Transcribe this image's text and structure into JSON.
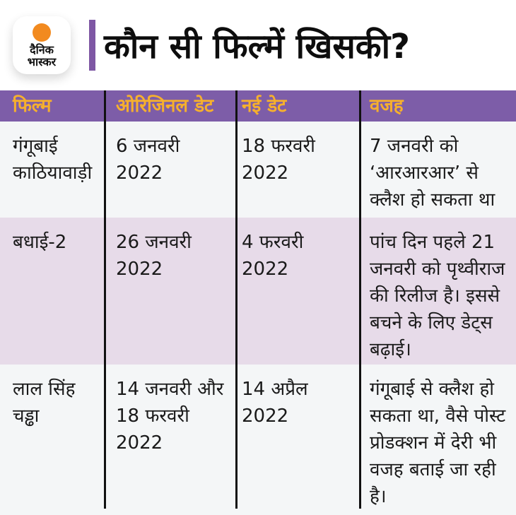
{
  "brand": {
    "logo_line1": "दैनिक",
    "logo_line2": "भास्कर",
    "sun_color": "#f28a1f"
  },
  "header": {
    "title": "कौन सी फिल्में खिसकी?",
    "accent_color": "#7e57a4"
  },
  "colors": {
    "table_header_bg": "#7d5da8",
    "table_header_text": "#f6b02d",
    "row_light_bg": "#f4f6f7",
    "row_pink_bg": "#e7dbe9",
    "divider": "#111111",
    "body_text": "#1a1a1a"
  },
  "chart_data": {
    "type": "table",
    "title": "कौन सी फिल्में खिसकी?",
    "columns": [
      "फिल्म",
      "ओरिजिनल डेट",
      "नई डेट",
      "वजह"
    ],
    "rows": [
      {
        "film": "गंगूबाई काठियावाड़ी",
        "original_date": "6 जनवरी 2022",
        "new_date": "18 फरवरी 2022",
        "reason": "7 जनवरी को ‘आरआरआर’ से क्लैश हो सकता था"
      },
      {
        "film": "बधाई-2",
        "original_date": "26 जनवरी 2022",
        "new_date": "4 फरवरी 2022",
        "reason": "पांच दिन पहले 21 जनवरी को पृथ्वीराज की रिलीज है। इससे बचने के लिए डेट्स बढ़ाई।"
      },
      {
        "film": "लाल सिंह चड्ढा",
        "original_date": "14 जनवरी और\n 18 फरवरी 2022",
        "new_date": "14 अप्रैल 2022",
        "reason": "गंगूबाई से क्लैश हो सकता था, वैसे पोस्ट प्रोडक्शन में देरी भी वजह बताई जा रही है।"
      }
    ]
  }
}
